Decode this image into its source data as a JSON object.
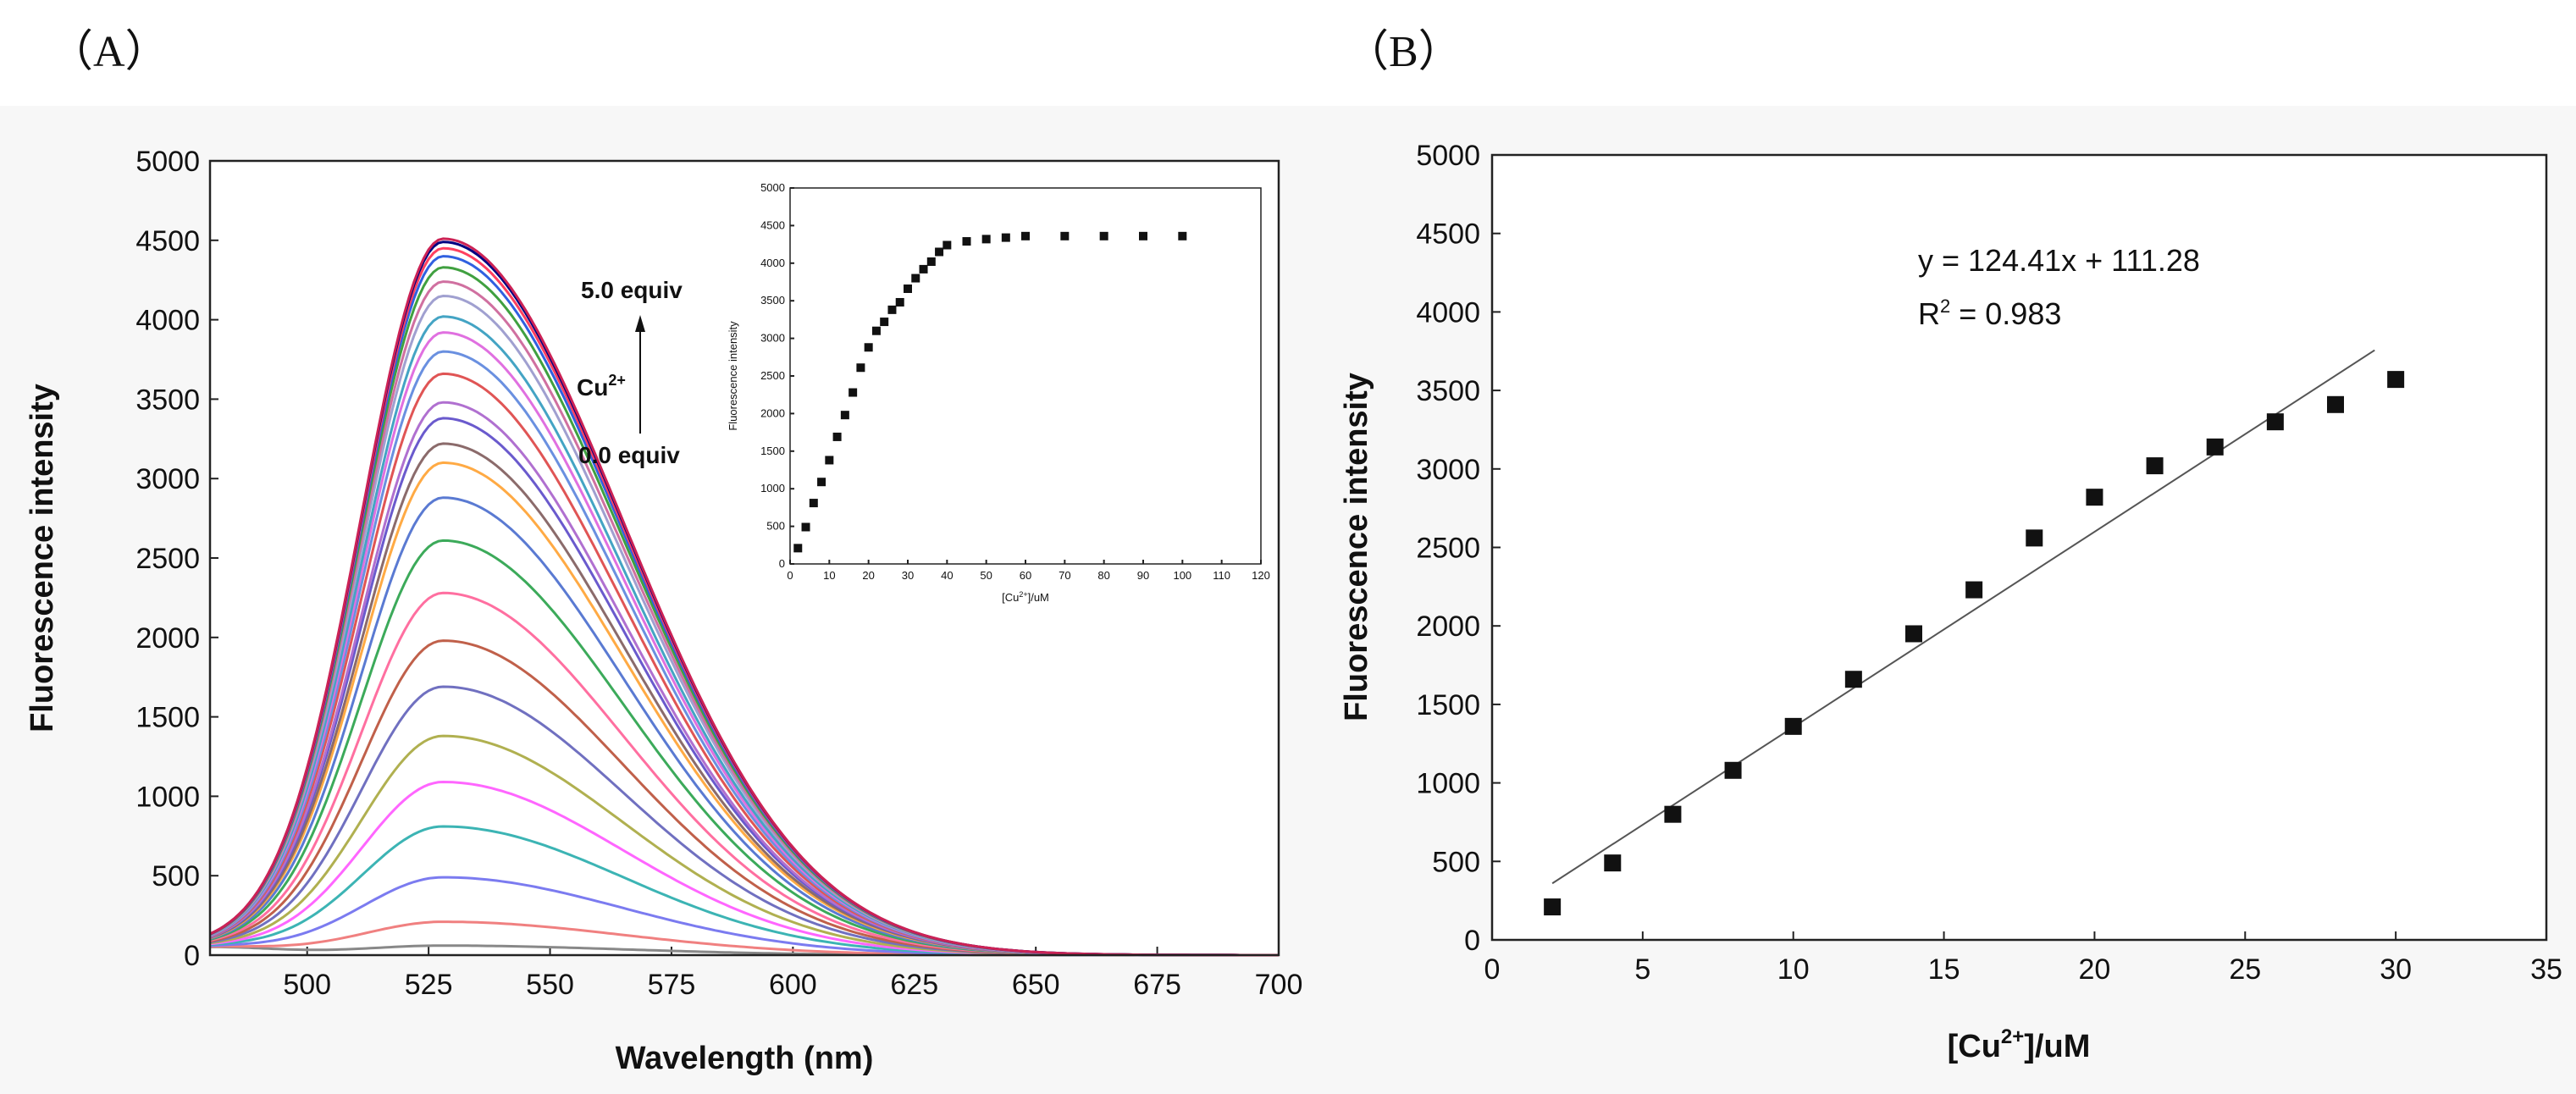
{
  "panel_labels": {
    "a": "（A）",
    "b": "（B）"
  },
  "chart_data": [
    {
      "id": "A",
      "type": "line",
      "title": "",
      "xlabel": "Wavelength (nm)",
      "ylabel": "Fluorescence intensity",
      "xlim": [
        480,
        700
      ],
      "ylim": [
        0,
        5000
      ],
      "xticks": [
        "500",
        "525",
        "550",
        "575",
        "600",
        "625",
        "650",
        "675",
        "700"
      ],
      "yticks": [
        "0",
        "500",
        "1000",
        "1500",
        "2000",
        "2500",
        "3000",
        "3500",
        "4000",
        "4500",
        "5000"
      ],
      "peak_nm": 528,
      "series_peaks": [
        60,
        210,
        490,
        810,
        1090,
        1380,
        1690,
        1980,
        2280,
        2610,
        2880,
        3100,
        3220,
        3380,
        3480,
        3660,
        3800,
        3920,
        4020,
        4150,
        4240,
        4330,
        4400,
        4450,
        4490,
        4510
      ],
      "series_colors": [
        "#888888",
        "#f08080",
        "#7b7bf0",
        "#3cb4b4",
        "#ff66ff",
        "#b0b050",
        "#7070c0",
        "#c0604a",
        "#ff6fa0",
        "#3caa5a",
        "#5a7ad2",
        "#ffaa44",
        "#8b6b6b",
        "#6a5acd",
        "#b070d0",
        "#e05555",
        "#6a90e0",
        "#e070e0",
        "#44a4c4",
        "#a0a0d0",
        "#d070a0",
        "#40a040",
        "#3060e0",
        "#ff4060",
        "#000080",
        "#cc2255"
      ],
      "annotations": {
        "top": "5.0 equiv",
        "ion": "Cu",
        "ion_sup": "2+",
        "bottom": "0.0 equiv"
      },
      "inset": {
        "type": "scatter",
        "xlabel_pre": "[Cu",
        "xlabel_sup": "2+",
        "xlabel_post": "]/uM",
        "ylabel": "Fluorescence intensity",
        "xlim": [
          0,
          120
        ],
        "ylim": [
          0,
          5000
        ],
        "xticks": [
          "0",
          "10",
          "20",
          "30",
          "40",
          "50",
          "60",
          "70",
          "80",
          "90",
          "100",
          "110",
          "120"
        ],
        "yticks": [
          "0",
          "500",
          "1000",
          "1500",
          "2000",
          "2500",
          "3000",
          "3500",
          "4000",
          "4500",
          "5000"
        ],
        "x": [
          2,
          4,
          6,
          8,
          10,
          12,
          14,
          16,
          18,
          20,
          22,
          24,
          26,
          28,
          30,
          32,
          34,
          36,
          38,
          40,
          45,
          50,
          55,
          60,
          70,
          80,
          90,
          100
        ],
        "y": [
          210,
          490,
          810,
          1090,
          1380,
          1690,
          1980,
          2280,
          2610,
          2880,
          3100,
          3220,
          3380,
          3480,
          3660,
          3800,
          3920,
          4020,
          4150,
          4240,
          4290,
          4320,
          4340,
          4360,
          4360,
          4360,
          4360,
          4360
        ]
      }
    },
    {
      "id": "B",
      "type": "scatter",
      "title": "",
      "xlabel_pre": "[Cu",
      "xlabel_sup": "2+",
      "xlabel_post": "]/uM",
      "ylabel": "Fluorescence intensity",
      "xlim": [
        0,
        35
      ],
      "ylim": [
        0,
        5000
      ],
      "xticks": [
        "0",
        "5",
        "10",
        "15",
        "20",
        "25",
        "30",
        "35"
      ],
      "yticks": [
        "0",
        "500",
        "1000",
        "1500",
        "2000",
        "2500",
        "3000",
        "3500",
        "4000",
        "4500",
        "5000"
      ],
      "x": [
        2,
        4,
        6,
        8,
        10,
        12,
        14,
        16,
        18,
        20,
        22,
        24,
        26,
        28,
        30
      ],
      "y": [
        210,
        490,
        800,
        1080,
        1360,
        1660,
        1950,
        2230,
        2560,
        2820,
        3020,
        3140,
        3300,
        3410,
        3570
      ],
      "fit": {
        "slope": 124.41,
        "intercept": 111.28,
        "x_range": [
          2,
          29.3
        ]
      },
      "equation": "y = 124.41x + 111.28",
      "r2_pre": "R",
      "r2_sup": "2",
      "r2_post": " = 0.983"
    }
  ]
}
